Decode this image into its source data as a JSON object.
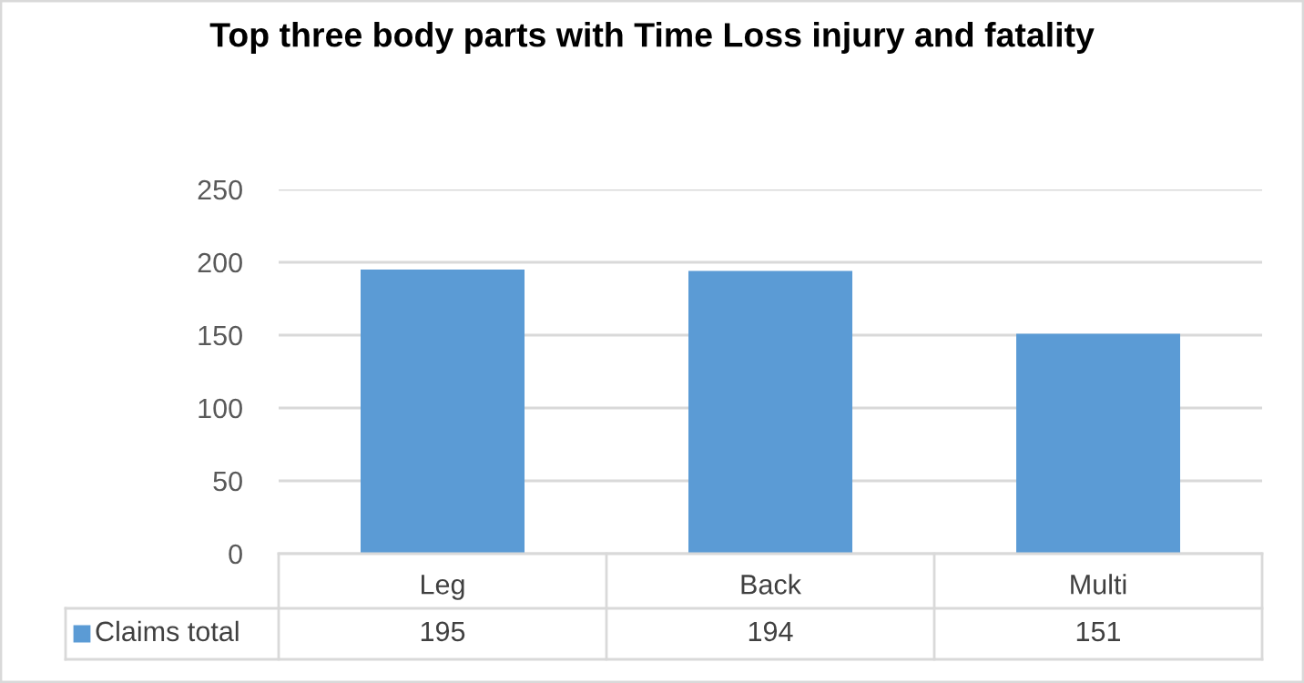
{
  "chart_data": {
    "type": "bar",
    "title": "Top three body parts with Time Loss injury and fatality",
    "categories": [
      "Leg",
      "Back",
      "Multi"
    ],
    "series": [
      {
        "name": "Claims total",
        "color": "#5b9bd5",
        "values": [
          195,
          194,
          151
        ]
      }
    ],
    "ylim": [
      0,
      250
    ],
    "yticks": [
      0,
      50,
      100,
      150,
      200,
      250
    ],
    "grid": "y",
    "data_labels": true,
    "legend": "bottom"
  }
}
